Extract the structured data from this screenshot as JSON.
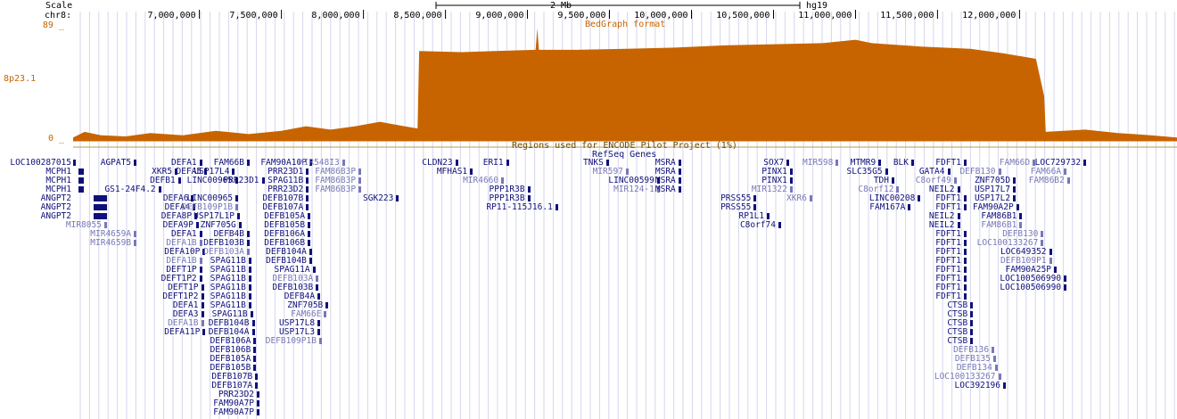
{
  "header": {
    "scale_label": "Scale",
    "scale_bar_text": "2 Mb",
    "assembly": "hg19",
    "chrom_label": "chr8:",
    "positions": [
      "7,000,000",
      "7,500,000",
      "8,000,000",
      "8,500,000",
      "9,000,000",
      "9,500,000",
      "10,000,000",
      "10,500,000",
      "11,000,000",
      "11,500,000",
      "12,000,000"
    ]
  },
  "bedgraph": {
    "max_label": "89 _",
    "min_label": "0 _",
    "band_label": "8p23.1",
    "format_label": "BedGraph format",
    "color": "#c86400",
    "window_start": 6230000,
    "window_end": 12960000,
    "profile": [
      {
        "pos": 6230000,
        "level": 0.03
      },
      {
        "pos": 6300000,
        "level": 0.08
      },
      {
        "pos": 6400000,
        "level": 0.05
      },
      {
        "pos": 6550000,
        "level": 0.04
      },
      {
        "pos": 6700000,
        "level": 0.07
      },
      {
        "pos": 6900000,
        "level": 0.05
      },
      {
        "pos": 7100000,
        "level": 0.09
      },
      {
        "pos": 7300000,
        "level": 0.06
      },
      {
        "pos": 7500000,
        "level": 0.09
      },
      {
        "pos": 7650000,
        "level": 0.13
      },
      {
        "pos": 7800000,
        "level": 0.1
      },
      {
        "pos": 7950000,
        "level": 0.13
      },
      {
        "pos": 8100000,
        "level": 0.17
      },
      {
        "pos": 8250000,
        "level": 0.13
      },
      {
        "pos": 8330000,
        "level": 0.11
      },
      {
        "pos": 8340000,
        "level": 0.8
      },
      {
        "pos": 8600000,
        "level": 0.79
      },
      {
        "pos": 8800000,
        "level": 0.8
      },
      {
        "pos": 9050000,
        "level": 0.81
      },
      {
        "pos": 9060000,
        "level": 1.0
      },
      {
        "pos": 9070000,
        "level": 0.81
      },
      {
        "pos": 9300000,
        "level": 0.81
      },
      {
        "pos": 9600000,
        "level": 0.82
      },
      {
        "pos": 9900000,
        "level": 0.83
      },
      {
        "pos": 10200000,
        "level": 0.85
      },
      {
        "pos": 10500000,
        "level": 0.86
      },
      {
        "pos": 10800000,
        "level": 0.87
      },
      {
        "pos": 11000000,
        "level": 0.9
      },
      {
        "pos": 11100000,
        "level": 0.87
      },
      {
        "pos": 11400000,
        "level": 0.84
      },
      {
        "pos": 11700000,
        "level": 0.82
      },
      {
        "pos": 11900000,
        "level": 0.78
      },
      {
        "pos": 12100000,
        "level": 0.73
      },
      {
        "pos": 12150000,
        "level": 0.4
      },
      {
        "pos": 12160000,
        "level": 0.08
      },
      {
        "pos": 12400000,
        "level": 0.1
      },
      {
        "pos": 12600000,
        "level": 0.07
      },
      {
        "pos": 12800000,
        "level": 0.05
      },
      {
        "pos": 12960000,
        "level": 0.03
      }
    ]
  },
  "encode_label": "Regions used for ENCODE Pilot Project (1%)",
  "refseq_label": "RefSeq Genes",
  "left_labels": [
    "LOC100287015",
    "MCPH1",
    "MCPH1",
    "MCPH1",
    "ANGPT2",
    "ANGPT2",
    "ANGPT2"
  ],
  "genes": [
    {
      "name": "AGPAT5",
      "pos": 6600000,
      "row": 0,
      "shade": "dark"
    },
    {
      "name": "XKR5",
      "pos": 6850000,
      "row": 1,
      "shade": "dark"
    },
    {
      "name": "DEFB1",
      "pos": 6870000,
      "row": 2,
      "shade": "dark"
    },
    {
      "name": "GS1-24F4.2",
      "pos": 6750000,
      "row": 3,
      "shade": "dark"
    },
    {
      "name": "MIR8055",
      "pos": 6420000,
      "row": 7,
      "shade": "light"
    },
    {
      "name": "MIR4659A",
      "pos": 6600000,
      "row": 8,
      "shade": "light"
    },
    {
      "name": "MIR4659B",
      "pos": 6600000,
      "row": 9,
      "shade": "light"
    },
    {
      "name": "DEFA1",
      "pos": 7000000,
      "row": 0,
      "shade": "dark"
    },
    {
      "name": "DEFA5",
      "pos": 7030000,
      "row": 1,
      "shade": "dark"
    },
    {
      "name": "DEFA6",
      "pos": 6950000,
      "row": 4,
      "shade": "dark"
    },
    {
      "name": "DEFA4",
      "pos": 6960000,
      "row": 5,
      "shade": "dark"
    },
    {
      "name": "DEFA8P",
      "pos": 6970000,
      "row": 6,
      "shade": "dark"
    },
    {
      "name": "DEFA9P",
      "pos": 6980000,
      "row": 7,
      "shade": "dark"
    },
    {
      "name": "DEFA1",
      "pos": 7000000,
      "row": 8,
      "shade": "dark"
    },
    {
      "name": "DEFA1B",
      "pos": 7000000,
      "row": 9,
      "shade": "light"
    },
    {
      "name": "DEFA10P",
      "pos": 7020000,
      "row": 10,
      "shade": "dark"
    },
    {
      "name": "DEFA1B",
      "pos": 7000000,
      "row": 11,
      "shade": "light"
    },
    {
      "name": "DEFT1P",
      "pos": 7000000,
      "row": 12,
      "shade": "dark"
    },
    {
      "name": "DEFT1P2",
      "pos": 7000000,
      "row": 13,
      "shade": "dark"
    },
    {
      "name": "DEFT1P",
      "pos": 7010000,
      "row": 14,
      "shade": "dark"
    },
    {
      "name": "DEFT1P2",
      "pos": 7010000,
      "row": 15,
      "shade": "dark"
    },
    {
      "name": "DEFA1",
      "pos": 7010000,
      "row": 16,
      "shade": "dark"
    },
    {
      "name": "DEFA3",
      "pos": 7010000,
      "row": 17,
      "shade": "dark"
    },
    {
      "name": "DEFA1B",
      "pos": 7010000,
      "row": 18,
      "shade": "light"
    },
    {
      "name": "DEFA11P",
      "pos": 7020000,
      "row": 19,
      "shade": "dark"
    },
    {
      "name": "FAM66B",
      "pos": 7290000,
      "row": 0,
      "shade": "dark"
    },
    {
      "name": "USP17L4",
      "pos": 7200000,
      "row": 1,
      "shade": "dark"
    },
    {
      "name": "LINC00965",
      "pos": 7220000,
      "row": 2,
      "shade": "dark"
    },
    {
      "name": "LINC00965",
      "pos": 7220000,
      "row": 4,
      "shade": "dark"
    },
    {
      "name": "DEFB109P1B",
      "pos": 7220000,
      "row": 5,
      "shade": "light"
    },
    {
      "name": "USP17L1P",
      "pos": 7230000,
      "row": 6,
      "shade": "dark"
    },
    {
      "name": "ZNF705G",
      "pos": 7240000,
      "row": 7,
      "shade": "dark"
    },
    {
      "name": "DEFB4B",
      "pos": 7290000,
      "row": 8,
      "shade": "dark"
    },
    {
      "name": "DEFB103B",
      "pos": 7290000,
      "row": 9,
      "shade": "dark"
    },
    {
      "name": "DEFB103A",
      "pos": 7290000,
      "row": 10,
      "shade": "light"
    },
    {
      "name": "SPAG11B",
      "pos": 7300000,
      "row": 11,
      "shade": "dark"
    },
    {
      "name": "SPAG11B",
      "pos": 7300000,
      "row": 12,
      "shade": "dark"
    },
    {
      "name": "SPAG11B",
      "pos": 7300000,
      "row": 13,
      "shade": "dark"
    },
    {
      "name": "SPAG11B",
      "pos": 7300000,
      "row": 14,
      "shade": "dark"
    },
    {
      "name": "SPAG11B",
      "pos": 7300000,
      "row": 15,
      "shade": "dark"
    },
    {
      "name": "SPAG11B",
      "pos": 7300000,
      "row": 16,
      "shade": "dark"
    },
    {
      "name": "SPAG11B",
      "pos": 7310000,
      "row": 17,
      "shade": "dark"
    },
    {
      "name": "DEFB104B",
      "pos": 7320000,
      "row": 18,
      "shade": "dark"
    },
    {
      "name": "DEFB104A",
      "pos": 7320000,
      "row": 19,
      "shade": "dark"
    },
    {
      "name": "DEFB106A",
      "pos": 7330000,
      "row": 20,
      "shade": "dark"
    },
    {
      "name": "DEFB106B",
      "pos": 7330000,
      "row": 21,
      "shade": "dark"
    },
    {
      "name": "DEFB105A",
      "pos": 7330000,
      "row": 22,
      "shade": "dark"
    },
    {
      "name": "DEFB105B",
      "pos": 7330000,
      "row": 23,
      "shade": "dark"
    },
    {
      "name": "DEFB107B",
      "pos": 7340000,
      "row": 24,
      "shade": "dark"
    },
    {
      "name": "DEFB107A",
      "pos": 7340000,
      "row": 25,
      "shade": "dark"
    },
    {
      "name": "PRR23D2",
      "pos": 7350000,
      "row": 26,
      "shade": "dark"
    },
    {
      "name": "FAM90A7P",
      "pos": 7350000,
      "row": 27,
      "shade": "dark"
    },
    {
      "name": "FAM90A7P",
      "pos": 7350000,
      "row": 28,
      "shade": "dark"
    },
    {
      "name": "PRR23D1",
      "pos": 7380000,
      "row": 2,
      "shade": "dark"
    },
    {
      "name": "FAM90A10P",
      "pos": 7670000,
      "row": 0,
      "shade": "dark"
    },
    {
      "name": "PRR23D1",
      "pos": 7650000,
      "row": 1,
      "shade": "dark"
    },
    {
      "name": "SPAG11B",
      "pos": 7650000,
      "row": 2,
      "shade": "dark"
    },
    {
      "name": "PRR23D2",
      "pos": 7650000,
      "row": 3,
      "shade": "dark"
    },
    {
      "name": "DEFB107B",
      "pos": 7650000,
      "row": 4,
      "shade": "dark"
    },
    {
      "name": "DEFB107A",
      "pos": 7650000,
      "row": 5,
      "shade": "dark"
    },
    {
      "name": "DEFB105A",
      "pos": 7660000,
      "row": 6,
      "shade": "dark"
    },
    {
      "name": "DEFB105B",
      "pos": 7660000,
      "row": 7,
      "shade": "dark"
    },
    {
      "name": "DEFB106A",
      "pos": 7660000,
      "row": 8,
      "shade": "dark"
    },
    {
      "name": "DEFB106B",
      "pos": 7660000,
      "row": 9,
      "shade": "dark"
    },
    {
      "name": "DEFB104A",
      "pos": 7670000,
      "row": 10,
      "shade": "dark"
    },
    {
      "name": "DEFB104B",
      "pos": 7670000,
      "row": 11,
      "shade": "dark"
    },
    {
      "name": "SPAG11A",
      "pos": 7690000,
      "row": 12,
      "shade": "dark"
    },
    {
      "name": "DEFB103A",
      "pos": 7710000,
      "row": 13,
      "shade": "light"
    },
    {
      "name": "DEFB103B",
      "pos": 7710000,
      "row": 14,
      "shade": "dark"
    },
    {
      "name": "DEFB4A",
      "pos": 7720000,
      "row": 15,
      "shade": "dark"
    },
    {
      "name": "ZNF705B",
      "pos": 7770000,
      "row": 16,
      "shade": "dark"
    },
    {
      "name": "FAM66E",
      "pos": 7760000,
      "row": 17,
      "shade": "light"
    },
    {
      "name": "USP17L8",
      "pos": 7720000,
      "row": 18,
      "shade": "dark"
    },
    {
      "name": "USP17L3",
      "pos": 7720000,
      "row": 19,
      "shade": "dark"
    },
    {
      "name": "DEFB109P1B",
      "pos": 7730000,
      "row": 20,
      "shade": "light"
    },
    {
      "name": "MIR548I3",
      "pos": 7870000,
      "row": 0,
      "shade": "light"
    },
    {
      "name": "FAM86B3P",
      "pos": 7970000,
      "row": 1,
      "shade": "light"
    },
    {
      "name": "FAM86B3P",
      "pos": 7970000,
      "row": 2,
      "shade": "light"
    },
    {
      "name": "FAM86B3P",
      "pos": 7970000,
      "row": 3,
      "shade": "light"
    },
    {
      "name": "SGK223",
      "pos": 8200000,
      "row": 4,
      "shade": "dark"
    },
    {
      "name": "CLDN23",
      "pos": 8560000,
      "row": 0,
      "shade": "dark"
    },
    {
      "name": "MFHAS1",
      "pos": 8650000,
      "row": 1,
      "shade": "dark"
    },
    {
      "name": "ERI1",
      "pos": 8870000,
      "row": 0,
      "shade": "dark"
    },
    {
      "name": "MIR4660",
      "pos": 8840000,
      "row": 2,
      "shade": "light"
    },
    {
      "name": "PPP1R3B",
      "pos": 9000000,
      "row": 3,
      "shade": "dark"
    },
    {
      "name": "PPP1R3B",
      "pos": 9000000,
      "row": 4,
      "shade": "dark"
    },
    {
      "name": "RP11-115J16.1",
      "pos": 9170000,
      "row": 5,
      "shade": "dark"
    },
    {
      "name": "TNKS",
      "pos": 9480000,
      "row": 0,
      "shade": "dark"
    },
    {
      "name": "MIR597",
      "pos": 9600000,
      "row": 1,
      "shade": "light"
    },
    {
      "name": "LINC00599",
      "pos": 9790000,
      "row": 2,
      "shade": "dark"
    },
    {
      "name": "MIR124-1",
      "pos": 9790000,
      "row": 3,
      "shade": "light"
    },
    {
      "name": "MSRA",
      "pos": 9920000,
      "row": 0,
      "shade": "dark"
    },
    {
      "name": "MSRA",
      "pos": 9920000,
      "row": 1,
      "shade": "dark"
    },
    {
      "name": "MSRA",
      "pos": 9920000,
      "row": 2,
      "shade": "dark"
    },
    {
      "name": "MSRA",
      "pos": 9920000,
      "row": 3,
      "shade": "dark"
    },
    {
      "name": "PRSS55",
      "pos": 10380000,
      "row": 4,
      "shade": "dark"
    },
    {
      "name": "PRSS55",
      "pos": 10380000,
      "row": 5,
      "shade": "dark"
    },
    {
      "name": "RP1L1",
      "pos": 10460000,
      "row": 6,
      "shade": "dark"
    },
    {
      "name": "C8orf74",
      "pos": 10530000,
      "row": 7,
      "shade": "dark"
    },
    {
      "name": "SOX7",
      "pos": 10580000,
      "row": 0,
      "shade": "dark"
    },
    {
      "name": "PINX1",
      "pos": 10600000,
      "row": 1,
      "shade": "dark"
    },
    {
      "name": "PINX1",
      "pos": 10600000,
      "row": 2,
      "shade": "dark"
    },
    {
      "name": "MIR1322",
      "pos": 10600000,
      "row": 3,
      "shade": "light"
    },
    {
      "name": "XKR6",
      "pos": 10720000,
      "row": 4,
      "shade": "light"
    },
    {
      "name": "MIR598",
      "pos": 10880000,
      "row": 0,
      "shade": "light"
    },
    {
      "name": "MTMR9",
      "pos": 11140000,
      "row": 0,
      "shade": "dark"
    },
    {
      "name": "SLC35G5",
      "pos": 11180000,
      "row": 1,
      "shade": "dark"
    },
    {
      "name": "C8orf12",
      "pos": 11250000,
      "row": 3,
      "shade": "light"
    },
    {
      "name": "TDH",
      "pos": 11220000,
      "row": 2,
      "shade": "dark"
    },
    {
      "name": "LINC00208",
      "pos": 11380000,
      "row": 4,
      "shade": "dark"
    },
    {
      "name": "FAM167A",
      "pos": 11320000,
      "row": 5,
      "shade": "dark"
    },
    {
      "name": "BLK",
      "pos": 11340000,
      "row": 0,
      "shade": "dark"
    },
    {
      "name": "GATA4",
      "pos": 11560000,
      "row": 1,
      "shade": "dark"
    },
    {
      "name": "C8orf49",
      "pos": 11600000,
      "row": 2,
      "shade": "light"
    },
    {
      "name": "NEIL2",
      "pos": 11620000,
      "row": 3,
      "shade": "dark"
    },
    {
      "name": "NEIL2",
      "pos": 11620000,
      "row": 6,
      "shade": "dark"
    },
    {
      "name": "NEIL2",
      "pos": 11620000,
      "row": 7,
      "shade": "dark"
    },
    {
      "name": "FDFT1",
      "pos": 11660000,
      "row": 0,
      "shade": "dark"
    },
    {
      "name": "FDFT1",
      "pos": 11660000,
      "row": 4,
      "shade": "dark"
    },
    {
      "name": "FDFT1",
      "pos": 11660000,
      "row": 5,
      "shade": "dark"
    },
    {
      "name": "FDFT1",
      "pos": 11660000,
      "row": 8,
      "shade": "dark"
    },
    {
      "name": "FDFT1",
      "pos": 11660000,
      "row": 9,
      "shade": "dark"
    },
    {
      "name": "FDFT1",
      "pos": 11660000,
      "row": 10,
      "shade": "dark"
    },
    {
      "name": "FDFT1",
      "pos": 11660000,
      "row": 11,
      "shade": "dark"
    },
    {
      "name": "FDFT1",
      "pos": 11660000,
      "row": 12,
      "shade": "dark"
    },
    {
      "name": "FDFT1",
      "pos": 11660000,
      "row": 13,
      "shade": "dark"
    },
    {
      "name": "FDFT1",
      "pos": 11660000,
      "row": 14,
      "shade": "dark"
    },
    {
      "name": "FDFT1",
      "pos": 11660000,
      "row": 15,
      "shade": "dark"
    },
    {
      "name": "CTSB",
      "pos": 11700000,
      "row": 16,
      "shade": "dark"
    },
    {
      "name": "CTSB",
      "pos": 11700000,
      "row": 17,
      "shade": "dark"
    },
    {
      "name": "CTSB",
      "pos": 11700000,
      "row": 18,
      "shade": "dark"
    },
    {
      "name": "CTSB",
      "pos": 11700000,
      "row": 19,
      "shade": "dark"
    },
    {
      "name": "CTSB",
      "pos": 11700000,
      "row": 20,
      "shade": "dark"
    },
    {
      "name": "DEFB136",
      "pos": 11830000,
      "row": 21,
      "shade": "light"
    },
    {
      "name": "DEFB135",
      "pos": 11840000,
      "row": 22,
      "shade": "light"
    },
    {
      "name": "DEFB134",
      "pos": 11850000,
      "row": 23,
      "shade": "light"
    },
    {
      "name": "LOC100133267",
      "pos": 11870000,
      "row": 24,
      "shade": "light"
    },
    {
      "name": "LOC392196",
      "pos": 11900000,
      "row": 25,
      "shade": "dark"
    },
    {
      "name": "FAM66D",
      "pos": 12080000,
      "row": 0,
      "shade": "light"
    },
    {
      "name": "DEFB130",
      "pos": 11870000,
      "row": 1,
      "shade": "light"
    },
    {
      "name": "ZNF705D",
      "pos": 11960000,
      "row": 2,
      "shade": "dark"
    },
    {
      "name": "USP17L7",
      "pos": 11960000,
      "row": 3,
      "shade": "dark"
    },
    {
      "name": "USP17L2",
      "pos": 11960000,
      "row": 4,
      "shade": "dark"
    },
    {
      "name": "FAM90A2P",
      "pos": 11980000,
      "row": 5,
      "shade": "dark"
    },
    {
      "name": "FAM86B1",
      "pos": 12000000,
      "row": 6,
      "shade": "dark"
    },
    {
      "name": "FAM86B1",
      "pos": 12000000,
      "row": 7,
      "shade": "light"
    },
    {
      "name": "DEFB130",
      "pos": 12130000,
      "row": 8,
      "shade": "light"
    },
    {
      "name": "LOC100133267",
      "pos": 12130000,
      "row": 9,
      "shade": "light"
    },
    {
      "name": "LOC649352",
      "pos": 12180000,
      "row": 10,
      "shade": "dark"
    },
    {
      "name": "DEFB109P1",
      "pos": 12180000,
      "row": 11,
      "shade": "light"
    },
    {
      "name": "FAM90A25P",
      "pos": 12210000,
      "row": 12,
      "shade": "dark"
    },
    {
      "name": "LOC100506990",
      "pos": 12270000,
      "row": 13,
      "shade": "dark"
    },
    {
      "name": "LOC100506990",
      "pos": 12270000,
      "row": 14,
      "shade": "dark"
    },
    {
      "name": "LOC729732",
      "pos": 12390000,
      "row": 0,
      "shade": "dark"
    },
    {
      "name": "FAM66A",
      "pos": 12270000,
      "row": 1,
      "shade": "light"
    },
    {
      "name": "FAM86B2",
      "pos": 12290000,
      "row": 2,
      "shade": "light"
    }
  ]
}
